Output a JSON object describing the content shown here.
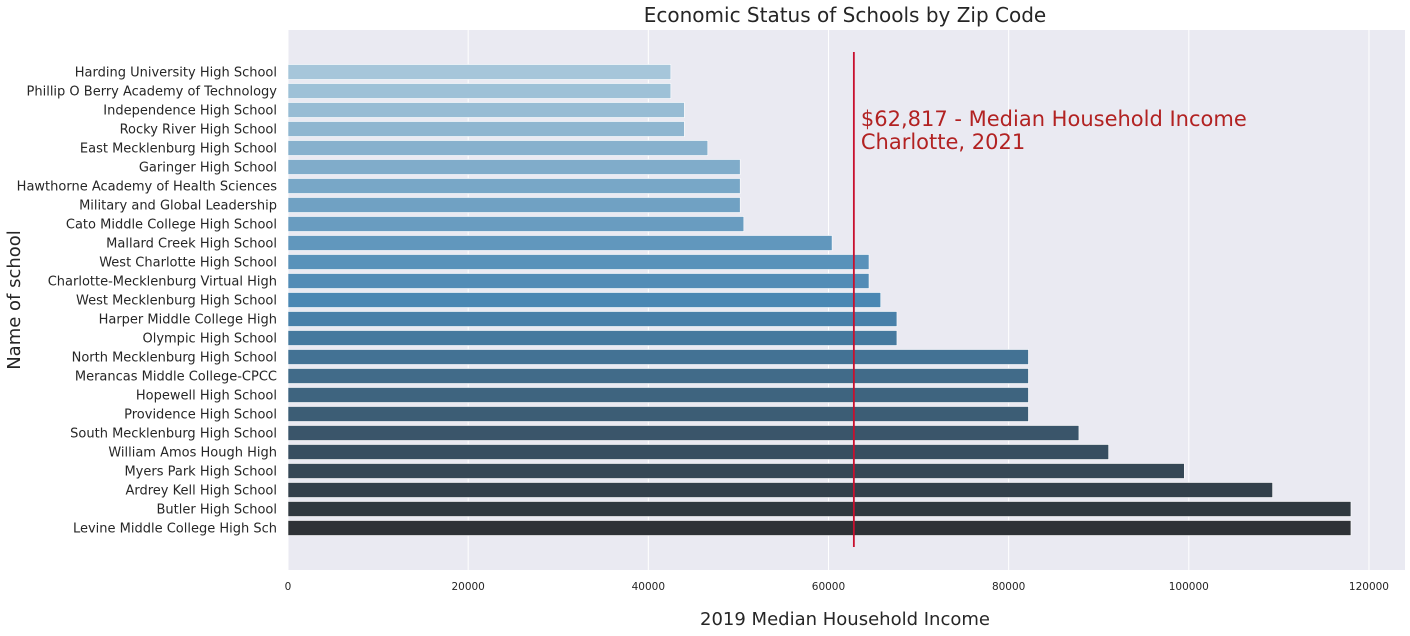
{
  "chart_data": {
    "type": "bar",
    "orientation": "horizontal",
    "title": "Economic Status of Schools by Zip Code",
    "xlabel": "2019 Median Household Income",
    "ylabel": "Name of school",
    "xlim": [
      0,
      124000
    ],
    "xticks": [
      0,
      20000,
      40000,
      60000,
      80000,
      100000,
      120000
    ],
    "xtick_labels": [
      "0",
      "20000",
      "40000",
      "60000",
      "80000",
      "100000",
      "120000"
    ],
    "grid": true,
    "categories": [
      "Harding University High School",
      "Phillip O Berry Academy of Technology",
      "Independence High School",
      "Rocky River High School",
      "East Mecklenburg High School",
      "Garinger High School",
      "Hawthorne Academy of Health Sciences",
      "Military and Global Leadership",
      "Cato Middle College High School",
      "Mallard Creek High School",
      "West Charlotte High School",
      "Charlotte-Mecklenburg Virtual High",
      "West Mecklenburg High School",
      "Harper Middle College High",
      "Olympic High School",
      "North Mecklenburg High School",
      "Merancas Middle College-CPCC",
      "Hopewell High School",
      "Providence High School",
      "South Mecklenburg High School",
      "William Amos Hough High",
      "Myers Park High School",
      "Ardrey Kell High School",
      "Butler High School",
      "Levine Middle College High Sch"
    ],
    "values": [
      42500,
      42500,
      44000,
      44000,
      46600,
      50200,
      50200,
      50200,
      50600,
      60400,
      64500,
      64500,
      65800,
      67600,
      67600,
      82200,
      82200,
      82200,
      82200,
      87800,
      91100,
      99500,
      109300,
      118000,
      118000
    ],
    "palette": {
      "start": "#a6c6da",
      "mid": "#4a87b3",
      "end": "#2e3236"
    },
    "reference_line": {
      "value": 62817,
      "color": "#c8102e",
      "label_line1": "$62,817 - Median Household Income",
      "label_line2": "Charlotte, 2021",
      "label_color": "#b22222"
    },
    "plot_background": "#eaeaf2",
    "grid_color": "#ffffff"
  }
}
